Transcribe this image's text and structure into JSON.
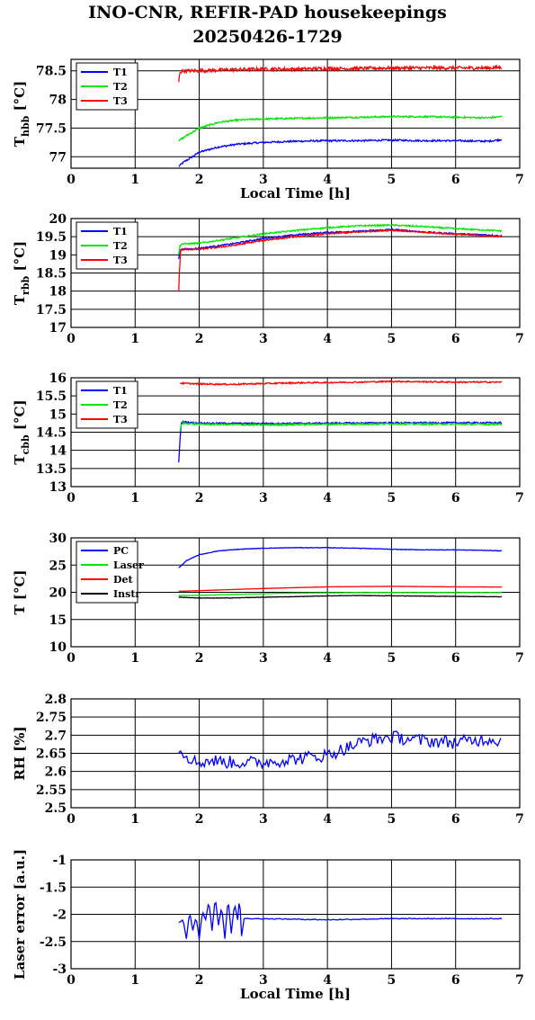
{
  "header": {
    "title": "INO-CNR, REFIR-PAD housekeepings",
    "subtitle": "20250426-1729"
  },
  "colors": {
    "blue": "#0000ff",
    "green": "#00e600",
    "red": "#ff0000",
    "black": "#000000"
  },
  "chart_data": [
    {
      "type": "line",
      "ylabel_main": "T",
      "ylabel_sub": "hbb",
      "ylabel_unit": " [°C]",
      "xlabel": "Local Time [h]",
      "xlim": [
        0,
        7
      ],
      "ylim": [
        76.8,
        78.7
      ],
      "xticks": [
        "0",
        "1",
        "2",
        "3",
        "4",
        "5",
        "6",
        "7"
      ],
      "yticks": [
        {
          "v": 77,
          "label": "77"
        },
        {
          "v": 77.5,
          "label": "77.5"
        },
        {
          "v": 78,
          "label": "78"
        },
        {
          "v": 78.5,
          "label": "78.5"
        }
      ],
      "legend": "top-left",
      "series": [
        {
          "name": "T1",
          "color": "#0000ff",
          "noise": 0.015,
          "x": [
            1.68,
            1.75,
            1.85,
            2.0,
            2.3,
            2.6,
            3.0,
            3.5,
            4.0,
            4.5,
            5.0,
            5.5,
            6.0,
            6.5,
            6.72
          ],
          "y": [
            76.83,
            76.9,
            76.97,
            77.08,
            77.17,
            77.22,
            77.25,
            77.27,
            77.28,
            77.28,
            77.29,
            77.28,
            77.28,
            77.27,
            77.3
          ]
        },
        {
          "name": "T2",
          "color": "#00e600",
          "noise": 0.015,
          "x": [
            1.68,
            1.75,
            1.85,
            2.0,
            2.3,
            2.6,
            3.0,
            3.5,
            4.0,
            4.5,
            5.0,
            5.5,
            6.0,
            6.5,
            6.72
          ],
          "y": [
            77.28,
            77.33,
            77.4,
            77.5,
            77.6,
            77.64,
            77.66,
            77.67,
            77.68,
            77.69,
            77.7,
            77.7,
            77.69,
            77.68,
            77.7
          ]
        },
        {
          "name": "T3",
          "color": "#ff0000",
          "noise": 0.03,
          "x": [
            1.68,
            1.7,
            1.75,
            2.0,
            2.5,
            3.0,
            3.5,
            4.0,
            4.5,
            5.0,
            5.5,
            6.0,
            6.5,
            6.72
          ],
          "y": [
            78.3,
            78.48,
            78.5,
            78.5,
            78.52,
            78.53,
            78.53,
            78.54,
            78.54,
            78.55,
            78.55,
            78.55,
            78.55,
            78.56
          ]
        }
      ]
    },
    {
      "type": "line",
      "ylabel_main": "T",
      "ylabel_sub": "rbb",
      "ylabel_unit": " [°C]",
      "xlabel": "",
      "xlim": [
        0,
        7
      ],
      "ylim": [
        17,
        20
      ],
      "xticks": [
        "0",
        "1",
        "2",
        "3",
        "4",
        "5",
        "6",
        "7"
      ],
      "yticks": [
        {
          "v": 17,
          "label": "17"
        },
        {
          "v": 17.5,
          "label": "17.5"
        },
        {
          "v": 18,
          "label": "18"
        },
        {
          "v": 18.5,
          "label": "18.5"
        },
        {
          "v": 19,
          "label": "19"
        },
        {
          "v": 19.5,
          "label": "19.5"
        },
        {
          "v": 20,
          "label": "20"
        }
      ],
      "legend": "top-left",
      "series": [
        {
          "name": "T1",
          "color": "#0000ff",
          "noise": 0.02,
          "x": [
            1.68,
            1.7,
            1.72,
            2.0,
            2.5,
            3.0,
            3.5,
            4.0,
            4.5,
            5.0,
            5.5,
            6.0,
            6.5,
            6.72
          ],
          "y": [
            18.9,
            19.12,
            19.15,
            19.18,
            19.3,
            19.45,
            19.55,
            19.62,
            19.65,
            19.7,
            19.63,
            19.58,
            19.55,
            19.52
          ]
        },
        {
          "name": "T2",
          "color": "#00e600",
          "noise": 0.02,
          "x": [
            1.68,
            1.7,
            1.72,
            2.0,
            2.5,
            3.0,
            3.5,
            4.0,
            4.5,
            5.0,
            5.5,
            6.0,
            6.5,
            6.72
          ],
          "y": [
            19.0,
            19.25,
            19.3,
            19.32,
            19.45,
            19.58,
            19.67,
            19.75,
            19.8,
            19.82,
            19.78,
            19.72,
            19.68,
            19.66
          ]
        },
        {
          "name": "T3",
          "color": "#ff0000",
          "noise": 0.02,
          "x": [
            1.68,
            1.69,
            1.71,
            1.73,
            2.0,
            2.5,
            3.0,
            3.5,
            4.0,
            4.5,
            5.0,
            5.5,
            6.0,
            6.5,
            6.72
          ],
          "y": [
            18.0,
            18.5,
            19.1,
            19.15,
            19.15,
            19.25,
            19.4,
            19.5,
            19.58,
            19.63,
            19.68,
            19.62,
            19.57,
            19.52,
            19.5
          ]
        }
      ]
    },
    {
      "type": "line",
      "ylabel_main": "T",
      "ylabel_sub": "cbb",
      "ylabel_unit": " [°C]",
      "xlabel": "",
      "xlim": [
        0,
        7
      ],
      "ylim": [
        13,
        16
      ],
      "xticks": [
        "0",
        "1",
        "2",
        "3",
        "4",
        "5",
        "6",
        "7"
      ],
      "yticks": [
        {
          "v": 13,
          "label": "13"
        },
        {
          "v": 13.5,
          "label": "13.5"
        },
        {
          "v": 14,
          "label": "14"
        },
        {
          "v": 14.5,
          "label": "14.5"
        },
        {
          "v": 15,
          "label": "15"
        },
        {
          "v": 15.5,
          "label": "15.5"
        },
        {
          "v": 16,
          "label": "16"
        }
      ],
      "legend": "top-left",
      "series": [
        {
          "name": "T1",
          "color": "#0000ff",
          "noise": 0.02,
          "x": [
            1.68,
            1.7,
            1.72,
            1.75,
            2.0,
            3.0,
            4.0,
            5.0,
            6.0,
            6.72
          ],
          "y": [
            13.65,
            14.3,
            14.75,
            14.78,
            14.75,
            14.74,
            14.75,
            14.76,
            14.76,
            14.76
          ]
        },
        {
          "name": "T2",
          "color": "#00e600",
          "noise": 0.025,
          "x": [
            1.7,
            1.72,
            1.75,
            2.0,
            3.0,
            4.0,
            5.0,
            6.0,
            6.72
          ],
          "y": [
            14.5,
            14.7,
            14.75,
            14.72,
            14.7,
            14.72,
            14.73,
            14.72,
            14.72
          ]
        },
        {
          "name": "T3",
          "color": "#ff0000",
          "noise": 0.02,
          "x": [
            1.7,
            2.0,
            2.5,
            3.0,
            3.5,
            4.0,
            4.5,
            5.0,
            5.5,
            6.0,
            6.5,
            6.72
          ],
          "y": [
            15.85,
            15.83,
            15.82,
            15.84,
            15.86,
            15.87,
            15.88,
            15.9,
            15.89,
            15.88,
            15.88,
            15.88
          ]
        }
      ]
    },
    {
      "type": "line",
      "ylabel_main": "T [°C]",
      "ylabel_sub": "",
      "ylabel_unit": "",
      "xlabel": "",
      "xlim": [
        0,
        7
      ],
      "ylim": [
        10,
        30
      ],
      "xticks": [
        "0",
        "1",
        "2",
        "3",
        "4",
        "5",
        "6",
        "7"
      ],
      "yticks": [
        {
          "v": 10,
          "label": "10"
        },
        {
          "v": 15,
          "label": "15"
        },
        {
          "v": 20,
          "label": "20"
        },
        {
          "v": 25,
          "label": "25"
        },
        {
          "v": 30,
          "label": "30"
        }
      ],
      "legend": "top-left",
      "series": [
        {
          "name": "PC",
          "color": "#0000ff",
          "noise": 0.05,
          "x": [
            1.68,
            1.8,
            2.0,
            2.3,
            2.6,
            3.0,
            3.5,
            4.0,
            4.5,
            5.0,
            5.5,
            6.0,
            6.5,
            6.72
          ],
          "y": [
            24.5,
            25.8,
            26.9,
            27.6,
            27.9,
            28.1,
            28.2,
            28.2,
            28.1,
            27.9,
            27.8,
            27.8,
            27.7,
            27.6
          ]
        },
        {
          "name": "Laser",
          "color": "#00e600",
          "noise": 0.03,
          "x": [
            1.68,
            2.0,
            2.5,
            3.0,
            3.5,
            4.0,
            4.5,
            5.0,
            5.5,
            6.0,
            6.5,
            6.72
          ],
          "y": [
            19.4,
            19.45,
            19.6,
            19.75,
            19.85,
            19.9,
            19.95,
            19.95,
            19.95,
            19.95,
            19.95,
            19.95
          ]
        },
        {
          "name": "Det",
          "color": "#ff0000",
          "noise": 0.02,
          "x": [
            1.68,
            2.0,
            2.5,
            3.0,
            3.5,
            4.0,
            4.5,
            5.0,
            5.5,
            6.0,
            6.5,
            6.72
          ],
          "y": [
            20.2,
            20.3,
            20.5,
            20.7,
            20.85,
            21.0,
            21.05,
            21.1,
            21.05,
            21.0,
            20.98,
            20.97
          ]
        },
        {
          "name": "Instr",
          "color": "#000000",
          "noise": 0.04,
          "x": [
            1.68,
            2.0,
            2.5,
            3.0,
            3.5,
            4.0,
            4.5,
            5.0,
            5.5,
            6.0,
            6.5,
            6.72
          ],
          "y": [
            19.1,
            18.95,
            18.95,
            19.1,
            19.2,
            19.35,
            19.4,
            19.35,
            19.3,
            19.25,
            19.2,
            19.2
          ]
        }
      ]
    },
    {
      "type": "line",
      "ylabel_main": "RH [%]",
      "ylabel_sub": "",
      "ylabel_unit": "",
      "xlabel": "",
      "xlim": [
        0,
        7
      ],
      "ylim": [
        2.5,
        2.8
      ],
      "xticks": [
        "0",
        "1",
        "2",
        "3",
        "4",
        "5",
        "6",
        "7"
      ],
      "yticks": [
        {
          "v": 2.5,
          "label": "2.5"
        },
        {
          "v": 2.55,
          "label": "2.55"
        },
        {
          "v": 2.6,
          "label": "2.6"
        },
        {
          "v": 2.65,
          "label": "2.65"
        },
        {
          "v": 2.7,
          "label": "2.7"
        },
        {
          "v": 2.75,
          "label": "2.75"
        },
        {
          "v": 2.8,
          "label": "2.8"
        }
      ],
      "legend": "none",
      "series": [
        {
          "name": "",
          "color": "#0000ff",
          "noise": 0.018,
          "step": 0.025,
          "x": [
            1.68,
            1.8,
            1.95,
            2.2,
            2.5,
            3.0,
            3.5,
            4.0,
            4.3,
            4.6,
            5.0,
            5.5,
            6.0,
            6.5,
            6.72
          ],
          "y": [
            2.665,
            2.645,
            2.625,
            2.63,
            2.625,
            2.625,
            2.635,
            2.645,
            2.665,
            2.685,
            2.695,
            2.685,
            2.68,
            2.69,
            2.685
          ]
        }
      ]
    },
    {
      "type": "line",
      "ylabel_main": "Laser error [a.u.]",
      "ylabel_sub": "",
      "ylabel_unit": "",
      "xlabel": "Local Time [h]",
      "xlim": [
        0,
        7
      ],
      "ylim": [
        -3,
        -1
      ],
      "xticks": [
        "0",
        "1",
        "2",
        "3",
        "4",
        "5",
        "6",
        "7"
      ],
      "yticks": [
        {
          "v": -3,
          "label": "-3"
        },
        {
          "v": -2.5,
          "label": "-2.5"
        },
        {
          "v": -2,
          "label": "-2"
        },
        {
          "v": -1.5,
          "label": "-1.5"
        },
        {
          "v": -1,
          "label": "-1"
        }
      ],
      "legend": "none",
      "series": [
        {
          "name": "",
          "color": "#0000ff",
          "noise": 0.008,
          "step": 0.02,
          "x": [
            1.68,
            1.75,
            1.8,
            1.85,
            1.9,
            1.95,
            2.0,
            2.05,
            2.1,
            2.15,
            2.2,
            2.25,
            2.3,
            2.35,
            2.4,
            2.45,
            2.5,
            2.55,
            2.6,
            2.63,
            2.66,
            2.7,
            3.0,
            4.0,
            5.0,
            6.0,
            6.72
          ],
          "y": [
            -2.15,
            -2.1,
            -2.45,
            -1.95,
            -2.3,
            -2.05,
            -2.45,
            -1.95,
            -2.1,
            -1.75,
            -2.3,
            -1.68,
            -2.2,
            -1.85,
            -2.45,
            -1.7,
            -2.35,
            -1.8,
            -2.1,
            -1.65,
            -2.4,
            -2.08,
            -2.08,
            -2.1,
            -2.08,
            -2.08,
            -2.08
          ]
        }
      ]
    }
  ]
}
